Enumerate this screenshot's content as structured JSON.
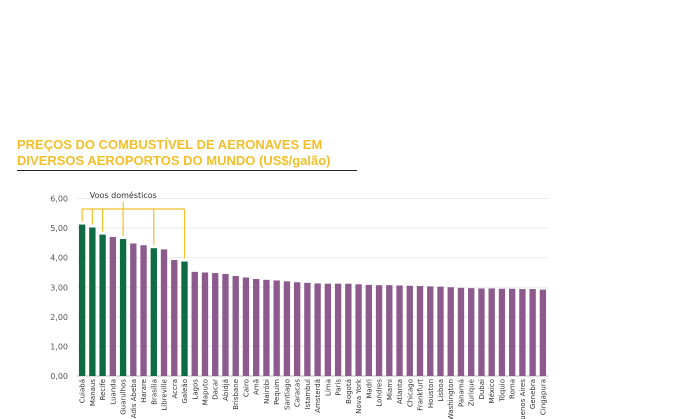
{
  "chart_data": {
    "type": "bar",
    "title": "PREÇOS DO COMBUSTÍVEL DE AERONAVES EM DIVERSOS AEROPORTOS DO MUNDO (US$/galão)",
    "title_line1": "PREÇOS DO COMBUSTÍVEL DE AERONAVES EM",
    "title_line2": "DIVERSOS AEROPORTOS DO MUNDO (US$/galão)",
    "xlabel": "",
    "ylabel": "",
    "ylim": [
      0,
      6
    ],
    "yticks": [
      "0,00",
      "1,00",
      "2,00",
      "3,00",
      "4,00",
      "5,00",
      "6,00"
    ],
    "grid": true,
    "annotation": "Voos domésticos",
    "colors": {
      "domestic": "#0f6b43",
      "international": "#8d5a8e",
      "annotation": "#f2c02a",
      "title": "#f2c02a"
    },
    "categories": [
      "Cuiabá",
      "Manaus",
      "Recife",
      "Luanda",
      "Guarulhos",
      "Adis Abeba",
      "Harare",
      "Brasília",
      "Libreville",
      "Accra",
      "Galeão",
      "Lagos",
      "Maputo",
      "Dacar",
      "Abidjã",
      "Brisbane",
      "Cairo",
      "Amã",
      "Nairóbi",
      "Pequim",
      "Santiago",
      "Caracas",
      "Istambul",
      "Amsterdã",
      "Lima",
      "Paris",
      "Bogotá",
      "Nova York",
      "Madri",
      "Londres",
      "Miami",
      "Atlanta",
      "Chicago",
      "Frankfurt",
      "Houston",
      "Lisboa",
      "Washington",
      "Panamá",
      "Zurique",
      "Dubai",
      "México",
      "Tóquio",
      "Roma",
      "Buenos Aires",
      "Genebra",
      "Cingapura"
    ],
    "values": [
      5.12,
      5.02,
      4.78,
      4.7,
      4.63,
      4.48,
      4.42,
      4.32,
      4.28,
      3.92,
      3.87,
      3.52,
      3.5,
      3.48,
      3.45,
      3.38,
      3.33,
      3.28,
      3.25,
      3.23,
      3.2,
      3.17,
      3.15,
      3.13,
      3.12,
      3.12,
      3.12,
      3.1,
      3.08,
      3.07,
      3.07,
      3.06,
      3.05,
      3.04,
      3.03,
      3.02,
      3.0,
      2.98,
      2.97,
      2.96,
      2.96,
      2.95,
      2.95,
      2.94,
      2.94,
      2.92
    ],
    "domestic": [
      true,
      true,
      true,
      false,
      true,
      false,
      false,
      true,
      false,
      false,
      true,
      false,
      false,
      false,
      false,
      false,
      false,
      false,
      false,
      false,
      false,
      false,
      false,
      false,
      false,
      false,
      false,
      false,
      false,
      false,
      false,
      false,
      false,
      false,
      false,
      false,
      false,
      false,
      false,
      false,
      false,
      false,
      false,
      false,
      false,
      false
    ]
  }
}
